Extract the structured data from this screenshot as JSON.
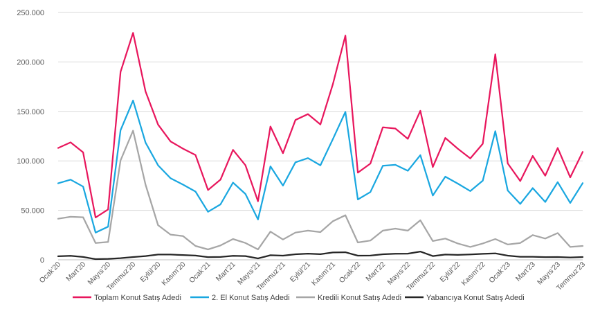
{
  "chart_data": {
    "type": "line",
    "title": "",
    "xlabel": "",
    "ylabel": "",
    "ylim": [
      0,
      250000
    ],
    "grid": true,
    "legend_position": "bottom",
    "y_ticks": [
      {
        "value": 0,
        "label": "0"
      },
      {
        "value": 50000,
        "label": "50.000"
      },
      {
        "value": 100000,
        "label": "100.000"
      },
      {
        "value": 150000,
        "label": "150.000"
      },
      {
        "value": 200000,
        "label": "200.000"
      },
      {
        "value": 250000,
        "label": "250.000"
      }
    ],
    "x": [
      "Ocak'20",
      "Şubat'20",
      "Mart'20",
      "Nisan'20",
      "Mayıs'20",
      "Haziran'20",
      "Temmuz'20",
      "Ağustos'20",
      "Eylül'20",
      "Ekim'20",
      "Kasım'20",
      "Aralık'20",
      "Ocak'21",
      "Şubat'21",
      "Mart'21",
      "Nisan'21",
      "Mayıs'21",
      "Haziran'21",
      "Temmuz'21",
      "Ağustos'21",
      "Eylül'21",
      "Ekim'21",
      "Kasım'21",
      "Aralık'21",
      "Ocak'22",
      "Şubat'22",
      "Mart'22",
      "Nisan'22",
      "Mayıs'22",
      "Haziran'22",
      "Temmuz'22",
      "Ağustos'22",
      "Eylül'22",
      "Ekim'22",
      "Kasım'22",
      "Aralık'22",
      "Ocak'23",
      "Şubat'23",
      "Mart'23",
      "Nisan'23",
      "Mayıs'23",
      "Haziran'23",
      "Temmuz'23"
    ],
    "x_tick_indices": [
      0,
      2,
      4,
      6,
      8,
      10,
      12,
      14,
      16,
      18,
      20,
      22,
      24,
      26,
      28,
      30,
      32,
      34,
      36,
      38,
      40,
      42
    ],
    "x_tick_labels": [
      "Ocak'20",
      "Mart'20",
      "Mayıs'20",
      "Temmuz'20",
      "Eylül'20",
      "Kasım'20",
      "Ocak'21",
      "Mart'21",
      "Mayıs'21",
      "Temmuz'21",
      "Eylül'21",
      "Kasım'21",
      "Ocak'22",
      "Mart'22",
      "Mayıs'22",
      "Temmuz'22",
      "Eylül'22",
      "Kasım'22",
      "Ocak'23",
      "Mart'23",
      "Mayıs'23",
      "Temmuz'23"
    ],
    "series": [
      {
        "name": "Toplam Konut Satış Adedi",
        "color": "#e8175d",
        "values": [
          113000,
          118700,
          108600,
          42800,
          50900,
          190000,
          229400,
          170200,
          136700,
          119700,
          112300,
          105900,
          70600,
          81000,
          111100,
          95500,
          59200,
          134700,
          107800,
          141300,
          147300,
          136800,
          177500,
          226600,
          88100,
          97300,
          133900,
          132700,
          122300,
          150600,
          93800,
          123200,
          112300,
          102500,
          117300,
          207700,
          97400,
          79600,
          105000,
          85000,
          113000,
          83300,
          109000
        ]
      },
      {
        "name": "2. El Konut Satış Adedi",
        "color": "#1aa7e0",
        "values": [
          77300,
          81000,
          74000,
          27500,
          33500,
          131000,
          161000,
          118500,
          95500,
          82500,
          76000,
          69000,
          48500,
          56000,
          78000,
          66500,
          40800,
          94500,
          75000,
          98500,
          102800,
          95500,
          122000,
          149500,
          61000,
          68500,
          95000,
          96000,
          90000,
          105800,
          65000,
          84000,
          77000,
          69500,
          80000,
          130000,
          70000,
          56500,
          72500,
          58500,
          78500,
          57500,
          77500
        ]
      },
      {
        "name": "Kredili Konut Satış Adedi",
        "color": "#a6a6a6",
        "values": [
          41500,
          43500,
          43000,
          17000,
          18000,
          100500,
          130500,
          76000,
          35000,
          25500,
          24000,
          14000,
          10500,
          14500,
          21000,
          17000,
          10500,
          28500,
          20500,
          27500,
          29500,
          28000,
          39000,
          45000,
          17500,
          19500,
          29500,
          31500,
          29500,
          40000,
          19000,
          21500,
          16500,
          13000,
          16500,
          21000,
          15500,
          17000,
          25000,
          21500,
          27000,
          13000,
          14000
        ]
      },
      {
        "name": "Yabancıya Konut Satış Adedi",
        "color": "#262626",
        "values": [
          3600,
          4000,
          2900,
          700,
          1000,
          1700,
          2800,
          3800,
          5300,
          5300,
          4800,
          4300,
          2700,
          2900,
          4000,
          3800,
          1400,
          4600,
          4200,
          5600,
          6200,
          5700,
          7400,
          7600,
          4200,
          4300,
          5600,
          6100,
          6200,
          8300,
          3800,
          5300,
          5000,
          5400,
          6000,
          6500,
          4200,
          3100,
          3100,
          2700,
          2800,
          2400,
          2800
        ]
      }
    ]
  }
}
